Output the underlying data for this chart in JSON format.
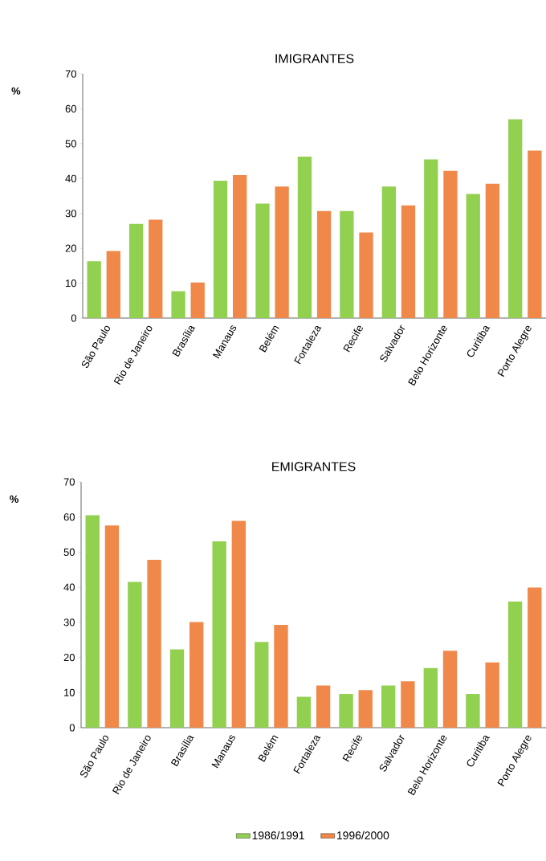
{
  "chart_data": [
    {
      "type": "bar",
      "title": "IMIGRANTES",
      "ylabel": "%",
      "categories": [
        "São Paulo",
        "Rio de Janeiro",
        "Brasília",
        "Manaus",
        "Belém",
        "Fortaleza",
        "Recife",
        "Salvador",
        "Belo Horizonte",
        "Curitiba",
        "Porto Alegre"
      ],
      "series": [
        {
          "color": "#92d050",
          "values": [
            16.3,
            27.0,
            7.7,
            39.4,
            32.8,
            46.3,
            30.7,
            37.7,
            45.5,
            35.6,
            57.0
          ]
        },
        {
          "color": "#f0884a",
          "values": [
            19.2,
            28.2,
            10.2,
            41.0,
            37.7,
            30.7,
            24.5,
            32.3,
            42.2,
            38.5,
            48.0
          ]
        }
      ],
      "ylim": [
        0,
        70
      ],
      "yticks": [
        0,
        10,
        20,
        30,
        40,
        50,
        60,
        70
      ],
      "grid": false,
      "legend": false
    },
    {
      "type": "bar",
      "title": "EMIGRANTES",
      "ylabel": "%",
      "categories": [
        "São Paulo",
        "Rio de Janeiro",
        "Brasília",
        "Manaus",
        "Belém",
        "Fortaleza",
        "Recife",
        "Salvador",
        "Belo Horizonte",
        "Curitiba",
        "Porto Alegre"
      ],
      "series": [
        {
          "name": "1986/1991",
          "color": "#92d050",
          "values": [
            60.5,
            41.5,
            22.3,
            53.1,
            24.4,
            8.8,
            9.6,
            12.0,
            17.0,
            9.6,
            35.9
          ]
        },
        {
          "name": "1996/2000",
          "color": "#f0884a",
          "values": [
            57.6,
            47.8,
            30.1,
            58.9,
            29.3,
            12.0,
            10.7,
            13.2,
            21.9,
            18.6,
            39.9
          ]
        }
      ],
      "ylim": [
        0,
        70
      ],
      "yticks": [
        0,
        10,
        20,
        30,
        40,
        50,
        60,
        70
      ],
      "grid": false,
      "legend": "bottom"
    }
  ]
}
